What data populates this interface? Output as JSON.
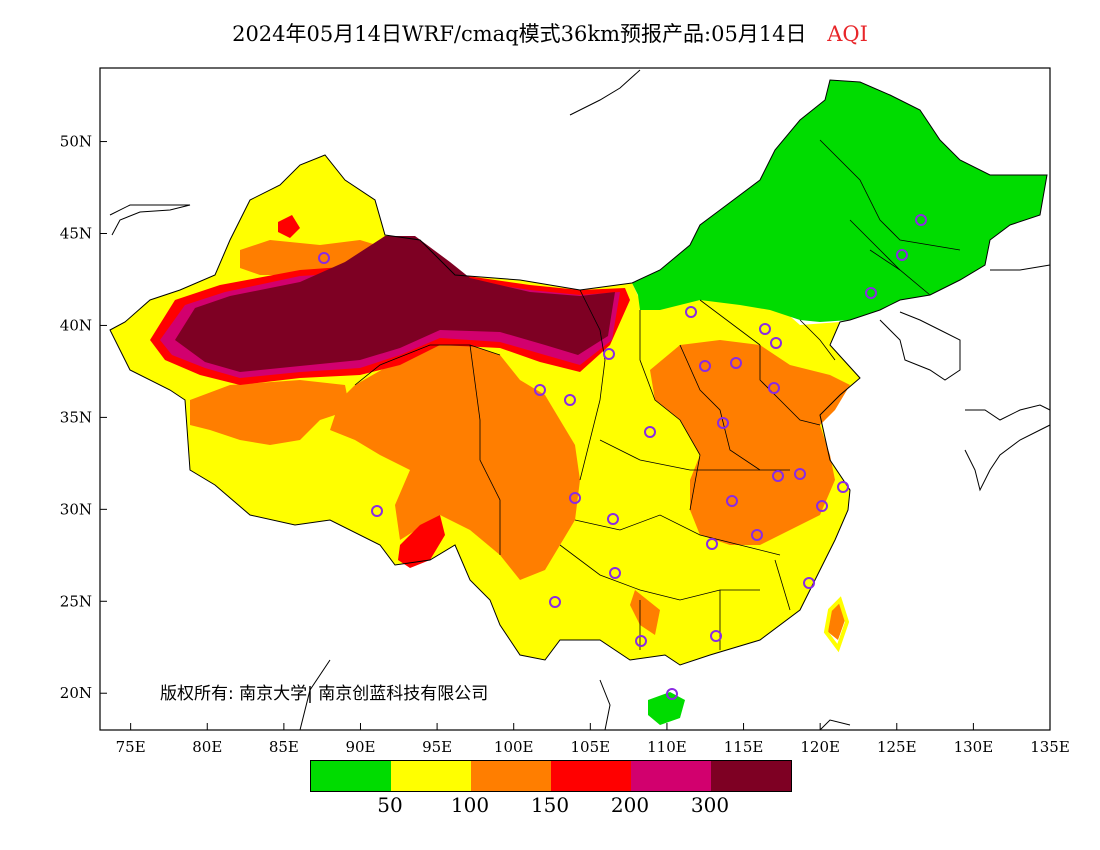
{
  "title": {
    "main": "2024年05月14日WRF/cmaq模式36km预报产品:05月14日",
    "variable": "AQI"
  },
  "axes": {
    "lon_labels": [
      "75E",
      "80E",
      "85E",
      "90E",
      "95E",
      "100E",
      "105E",
      "110E",
      "115E",
      "120E",
      "125E",
      "130E",
      "135E"
    ],
    "lat_labels": [
      "50N",
      "45N",
      "40N",
      "35N",
      "30N",
      "25N",
      "20N"
    ],
    "lon_range": [
      73,
      135
    ],
    "lat_range": [
      18,
      54
    ]
  },
  "copyright": "版权所有: 南京大学| 南京创蓝科技有限公司",
  "legend": {
    "colors": [
      "#00dc00",
      "#ffff00",
      "#ff7e00",
      "#ff0000",
      "#d2006e",
      "#7e0023"
    ],
    "labels": [
      "50",
      "100",
      "150",
      "200",
      "300"
    ]
  },
  "colors": {
    "good": "#00dc00",
    "moderate": "#ffff00",
    "usg": "#ff7e00",
    "unhealthy": "#ff0000",
    "very_unhealthy": "#d2006e",
    "hazardous": "#7e0023",
    "city_marker": "#8a2be2"
  }
}
